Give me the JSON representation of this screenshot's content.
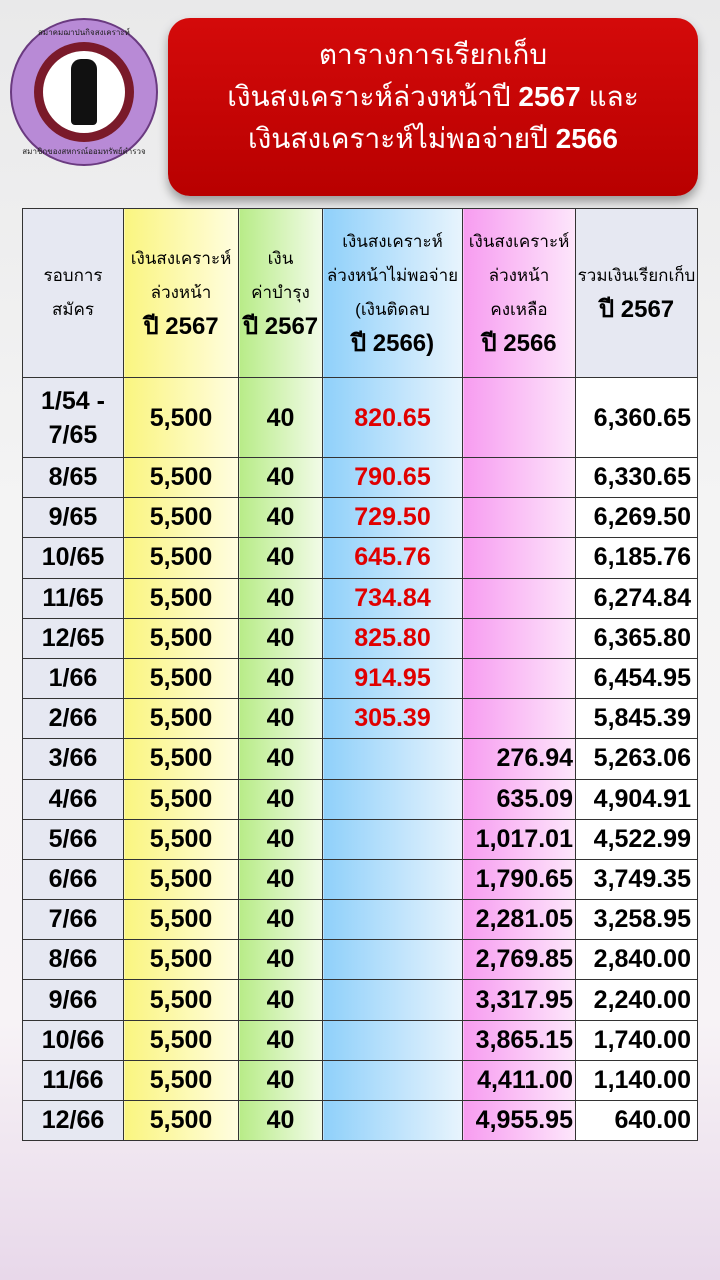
{
  "logo": {
    "top_text": "สมาคมฌาปนกิจสงเคราะห์",
    "bottom_text": "สมาชิกของสหกรณ์ออมทรัพย์ตำรวจ"
  },
  "title": {
    "line1": "ตารางการเรียกเก็บ",
    "line2_text": "เงินสงเคราะห์ล่วงหน้าปี",
    "line2_year": "2567",
    "line2_end": "และ",
    "line3_text": "เงินสงเคราะห์ไม่พอจ่ายปี",
    "line3_year": "2566"
  },
  "headers": [
    {
      "l1": "รอบการ",
      "l2": "สมัคร"
    },
    {
      "l1": "เงินสงเคราะห์",
      "l2": "ล่วงหน้า",
      "l3": "ปี 2567"
    },
    {
      "l1": "เงิน",
      "l2": "ค่าบำรุง",
      "l3": "ปี 2567"
    },
    {
      "l1": "เงินสงเคราะห์",
      "l2": "ล่วงหน้าไม่พอจ่าย",
      "l3": "(เงินติดลบ",
      "l4": "ปี 2566)"
    },
    {
      "l1": "เงินสงเคราะห์",
      "l2": "ล่วงหน้า",
      "l3": "คงเหลือ",
      "l4": "ปี 2566"
    },
    {
      "l1": "รวมเงินเรียกเก็บ",
      "l2": "ปี 2567"
    }
  ],
  "rows": [
    [
      "1/54 - 7/65",
      "5,500",
      "40",
      "820.65",
      "",
      "6,360.65"
    ],
    [
      "8/65",
      "5,500",
      "40",
      "790.65",
      "",
      "6,330.65"
    ],
    [
      "9/65",
      "5,500",
      "40",
      "729.50",
      "",
      "6,269.50"
    ],
    [
      "10/65",
      "5,500",
      "40",
      "645.76",
      "",
      "6,185.76"
    ],
    [
      "11/65",
      "5,500",
      "40",
      "734.84",
      "",
      "6,274.84"
    ],
    [
      "12/65",
      "5,500",
      "40",
      "825.80",
      "",
      "6,365.80"
    ],
    [
      "1/66",
      "5,500",
      "40",
      "914.95",
      "",
      "6,454.95"
    ],
    [
      "2/66",
      "5,500",
      "40",
      "305.39",
      "",
      "5,845.39"
    ],
    [
      "3/66",
      "5,500",
      "40",
      "",
      "276.94",
      "5,263.06"
    ],
    [
      "4/66",
      "5,500",
      "40",
      "",
      "635.09",
      "4,904.91"
    ],
    [
      "5/66",
      "5,500",
      "40",
      "",
      "1,017.01",
      "4,522.99"
    ],
    [
      "6/66",
      "5,500",
      "40",
      "",
      "1,790.65",
      "3,749.35"
    ],
    [
      "7/66",
      "5,500",
      "40",
      "",
      "2,281.05",
      "3,258.95"
    ],
    [
      "8/66",
      "5,500",
      "40",
      "",
      "2,769.85",
      "2,840.00"
    ],
    [
      "9/66",
      "5,500",
      "40",
      "",
      "3,317.95",
      "2,240.00"
    ],
    [
      "10/66",
      "5,500",
      "40",
      "",
      "3,865.15",
      "1,740.00"
    ],
    [
      "11/66",
      "5,500",
      "40",
      "",
      "4,411.00",
      "1,140.00"
    ],
    [
      "12/66",
      "5,500",
      "40",
      "",
      "4,955.95",
      "640.00"
    ]
  ],
  "colors": {
    "banner": "#c00000",
    "negative": "#e00000"
  }
}
